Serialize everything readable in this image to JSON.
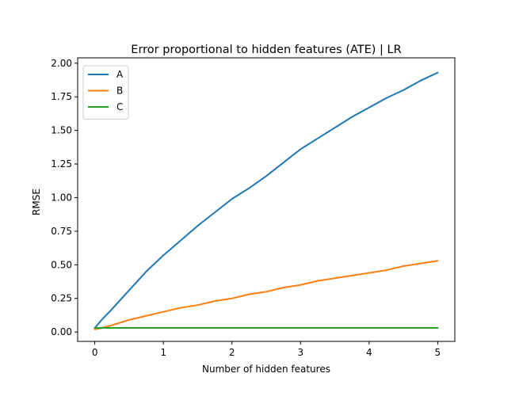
{
  "chart_data": {
    "type": "line",
    "title": "Error proportional to hidden features (ATE) | LR",
    "xlabel": "Number of hidden features",
    "ylabel": "RMSE",
    "xlim": [
      -0.25,
      5.25
    ],
    "ylim": [
      -0.07,
      2.04
    ],
    "xticks": [
      0,
      1,
      2,
      3,
      4,
      5
    ],
    "xtick_labels": [
      "0",
      "1",
      "2",
      "3",
      "4",
      "5"
    ],
    "yticks": [
      0.0,
      0.25,
      0.5,
      0.75,
      1.0,
      1.25,
      1.5,
      1.75,
      2.0
    ],
    "ytick_labels": [
      "0.00",
      "0.25",
      "0.50",
      "0.75",
      "1.00",
      "1.25",
      "1.50",
      "1.75",
      "2.00"
    ],
    "grid": false,
    "legend_position": "top-left",
    "x": [
      0,
      0.1,
      0.25,
      0.5,
      0.75,
      1.0,
      1.25,
      1.5,
      1.75,
      2.0,
      2.25,
      2.5,
      2.75,
      3.0,
      3.25,
      3.5,
      3.75,
      4.0,
      4.25,
      4.5,
      4.75,
      5.0
    ],
    "series": [
      {
        "name": "A",
        "color": "#1f77b4",
        "values": [
          0.03,
          0.09,
          0.17,
          0.31,
          0.45,
          0.57,
          0.68,
          0.79,
          0.89,
          0.99,
          1.07,
          1.16,
          1.26,
          1.36,
          1.44,
          1.52,
          1.6,
          1.67,
          1.74,
          1.8,
          1.87,
          1.93
        ]
      },
      {
        "name": "B",
        "color": "#ff7f0e",
        "values": [
          0.02,
          0.03,
          0.05,
          0.09,
          0.12,
          0.15,
          0.18,
          0.2,
          0.23,
          0.25,
          0.28,
          0.3,
          0.33,
          0.35,
          0.38,
          0.4,
          0.42,
          0.44,
          0.46,
          0.49,
          0.51,
          0.53
        ]
      },
      {
        "name": "C",
        "color": "#2ca02c",
        "values": [
          0.03,
          0.03,
          0.03,
          0.03,
          0.03,
          0.03,
          0.03,
          0.03,
          0.03,
          0.03,
          0.03,
          0.03,
          0.03,
          0.03,
          0.03,
          0.03,
          0.03,
          0.03,
          0.03,
          0.03,
          0.03,
          0.03
        ]
      }
    ]
  }
}
